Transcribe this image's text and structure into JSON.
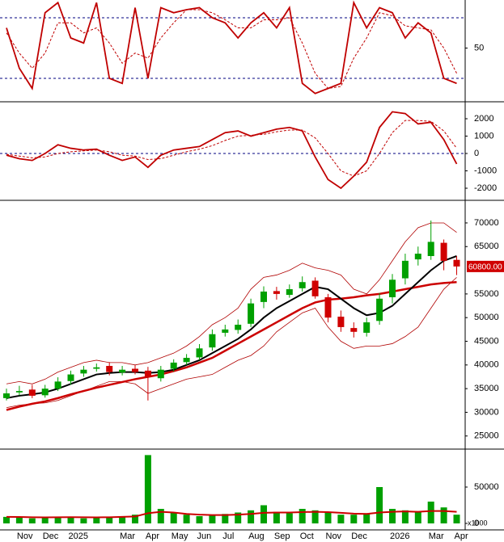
{
  "chart_data": [
    {
      "type": "line",
      "ylim": [
        -2.4,
        97.6
      ],
      "yticks": [
        50
      ],
      "hlines": [
        20,
        80
      ],
      "series": [
        {
          "color": "#c00000",
          "dash": false,
          "values": [
            70,
            30,
            10,
            85,
            95,
            60,
            55,
            95,
            20,
            15,
            90,
            20,
            90,
            85,
            88,
            90,
            80,
            75,
            60,
            75,
            85,
            70,
            90,
            15,
            5,
            10,
            15,
            95,
            70,
            90,
            85,
            60,
            75,
            65,
            20,
            15
          ]
        },
        {
          "color": "#c00000",
          "dash": true,
          "values": [
            65,
            45,
            30,
            45,
            75,
            75,
            65,
            70,
            55,
            35,
            45,
            40,
            60,
            75,
            88,
            88,
            85,
            78,
            70,
            70,
            78,
            78,
            80,
            55,
            25,
            10,
            12,
            40,
            60,
            85,
            82,
            72,
            70,
            68,
            50,
            25
          ]
        }
      ]
    },
    {
      "type": "line",
      "ylim": [
        -2650,
        2930
      ],
      "yticks": [
        2000,
        1000,
        0,
        -1000,
        -2000
      ],
      "hlines": [
        0
      ],
      "series": [
        {
          "color": "#c00000",
          "dash": false,
          "values": [
            -100,
            -300,
            -400,
            0,
            500,
            300,
            200,
            250,
            -100,
            -400,
            -200,
            -800,
            -100,
            200,
            300,
            400,
            800,
            1200,
            1300,
            1000,
            1200,
            1400,
            1500,
            1300,
            -200,
            -1500,
            -2000,
            -1300,
            -500,
            1500,
            2400,
            2300,
            1700,
            1800,
            800,
            -600
          ]
        },
        {
          "color": "#c00000",
          "dash": true,
          "values": [
            -50,
            -150,
            -250,
            -200,
            0,
            100,
            150,
            200,
            100,
            -100,
            -150,
            -350,
            -300,
            -100,
            100,
            250,
            450,
            750,
            1000,
            1050,
            1100,
            1250,
            1350,
            1350,
            900,
            0,
            -1000,
            -1300,
            -1000,
            0,
            1200,
            1900,
            1900,
            1850,
            1300,
            300
          ]
        }
      ]
    },
    {
      "type": "candlestick",
      "ylim": [
        22400,
        74600
      ],
      "yticks": [
        70000,
        65000,
        55000,
        50000,
        45000,
        40000,
        35000,
        30000,
        25000
      ],
      "up_color": "#00a000",
      "down_color": "#d00000",
      "open": [
        33000,
        34200,
        34800,
        33600,
        35000,
        36600,
        38200,
        39200,
        39800,
        38400,
        39200,
        38800,
        37200,
        39200,
        40600,
        41600,
        43700,
        46800,
        47400,
        48700,
        53300,
        55600,
        54800,
        56200,
        57800,
        54300,
        50200,
        47800,
        46800,
        49300,
        54300,
        58300,
        62300,
        63000,
        65800,
        62200
      ],
      "high": [
        35000,
        35600,
        35800,
        35800,
        37400,
        38800,
        39800,
        40300,
        40600,
        39800,
        40000,
        39600,
        39800,
        41200,
        42300,
        44400,
        47500,
        48500,
        49600,
        54000,
        56600,
        56500,
        57000,
        58700,
        58500,
        55000,
        51500,
        49000,
        50000,
        55200,
        59200,
        63500,
        65000,
        70500,
        66500,
        63000
      ],
      "low": [
        32500,
        33600,
        33000,
        33100,
        34500,
        35800,
        37500,
        38600,
        37800,
        37800,
        38000,
        32500,
        36500,
        38600,
        40000,
        41000,
        43000,
        46000,
        46600,
        48000,
        52000,
        53800,
        54200,
        55500,
        54000,
        49000,
        47000,
        45800,
        46000,
        48500,
        53000,
        57000,
        61000,
        62200,
        60000,
        59000
      ],
      "close": [
        34000,
        34500,
        33500,
        35000,
        36500,
        38000,
        39000,
        39500,
        38500,
        39000,
        38500,
        37500,
        39000,
        40500,
        41500,
        43500,
        46500,
        47500,
        48500,
        53000,
        55500,
        55000,
        56000,
        57500,
        54500,
        50000,
        48000,
        47000,
        49000,
        54000,
        58000,
        62000,
        63500,
        66000,
        62000,
        60800
      ],
      "last_label": {
        "value": 60800,
        "label": "60800.00"
      },
      "overlays": [
        {
          "color": "#b00000",
          "width": 0.8,
          "values": [
            36000,
            36500,
            36000,
            37000,
            38500,
            39500,
            40500,
            41000,
            40500,
            40500,
            40000,
            40500,
            41500,
            42500,
            44000,
            46000,
            48500,
            50000,
            52000,
            56000,
            58500,
            59000,
            60000,
            61500,
            60500,
            60000,
            59000,
            56000,
            55000,
            58000,
            62000,
            66000,
            69000,
            70000,
            70000,
            68000
          ]
        },
        {
          "color": "#b00000",
          "width": 0.8,
          "values": [
            31000,
            31500,
            31800,
            32000,
            32500,
            33500,
            34500,
            35500,
            36500,
            36500,
            36000,
            34000,
            35000,
            36000,
            37000,
            37500,
            38000,
            39500,
            41000,
            42000,
            44000,
            47000,
            49000,
            51000,
            52000,
            48000,
            45000,
            43500,
            44000,
            44000,
            44500,
            46000,
            48000,
            52000,
            56000,
            58500
          ]
        },
        {
          "color": "#cc0000",
          "width": 2.5,
          "values": [
            30500,
            31200,
            31800,
            32300,
            33000,
            33800,
            34500,
            35200,
            35800,
            36400,
            37000,
            37500,
            38000,
            38700,
            39500,
            40500,
            41500,
            43000,
            44500,
            46000,
            47500,
            49000,
            50500,
            52000,
            53200,
            53800,
            54000,
            54300,
            54700,
            55000,
            55500,
            56000,
            56500,
            57000,
            57300,
            57500
          ]
        },
        {
          "color": "#000000",
          "width": 2,
          "values": [
            33000,
            33500,
            33800,
            34200,
            35000,
            36000,
            37000,
            38000,
            38300,
            38500,
            38500,
            38300,
            38500,
            39000,
            40000,
            41000,
            42500,
            44000,
            45500,
            47500,
            50000,
            52000,
            53500,
            55000,
            56500,
            56000,
            54000,
            52000,
            50500,
            51000,
            52500,
            55000,
            57500,
            60000,
            62000,
            63000
          ]
        }
      ]
    },
    {
      "type": "bar",
      "ylim": [
        -7800,
        101100
      ],
      "yticks": [
        50000,
        0
      ],
      "unit_label": "x1000",
      "color": "#00a000",
      "categories": [
        null,
        "Nov",
        null,
        "Dec",
        null,
        "2025",
        null,
        null,
        null,
        "Mar",
        null,
        "Apr",
        null,
        "May",
        null,
        "Jun",
        null,
        "Jul",
        null,
        "Aug",
        null,
        "Sep",
        null,
        "Oct",
        null,
        "Nov",
        null,
        "Dec",
        null,
        null,
        "2026",
        null,
        null,
        "Mar",
        null,
        "Apr"
      ],
      "values": [
        9000,
        8000,
        7000,
        8000,
        9000,
        8000,
        7000,
        8000,
        9000,
        10000,
        12000,
        94000,
        20000,
        15000,
        12000,
        10000,
        11000,
        13000,
        15000,
        18000,
        25000,
        16000,
        14000,
        20000,
        18000,
        15000,
        12000,
        12000,
        14000,
        50000,
        20000,
        18000,
        16000,
        30000,
        22000,
        12000
      ],
      "overlay": {
        "color": "#cc0000",
        "values": [
          9000,
          8800,
          8500,
          8300,
          8500,
          8600,
          8400,
          8300,
          8500,
          9000,
          9500,
          14000,
          16000,
          15000,
          13000,
          12000,
          11500,
          11500,
          12000,
          13000,
          14500,
          15000,
          15000,
          15500,
          16000,
          15500,
          14500,
          13500,
          13000,
          15000,
          16000,
          16500,
          16000,
          17000,
          17000,
          16000
        ]
      }
    }
  ]
}
